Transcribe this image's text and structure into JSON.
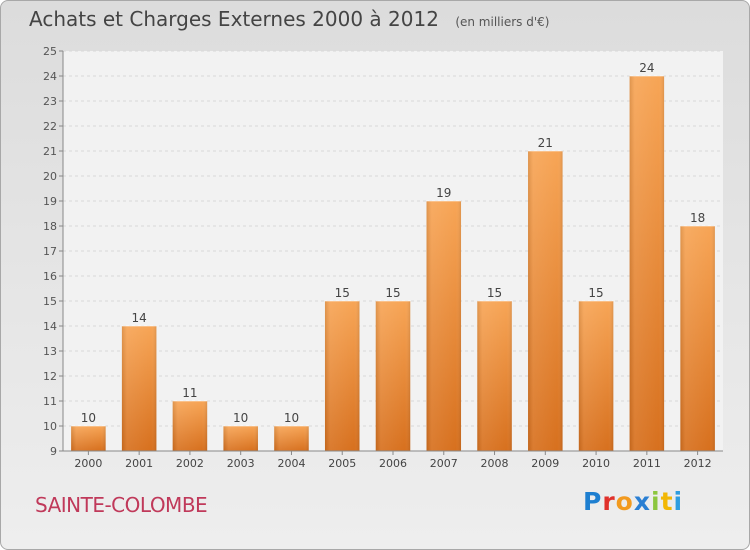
{
  "header": {
    "title": "Achats et Charges Externes 2000 à 2012",
    "unit": "(en milliers d'€)"
  },
  "footer": {
    "commune": "SAINTE-COLOMBE",
    "brand": "Proxiti"
  },
  "colors": {
    "bar_top": "#f7a556",
    "bar_bottom": "#d7701e",
    "commune_text": "#c0395a"
  },
  "chart_data": {
    "type": "bar",
    "title": "Achats et Charges Externes 2000 à 2012",
    "subtitle": "(en milliers d'€)",
    "categories": [
      "2000",
      "2001",
      "2002",
      "2003",
      "2004",
      "2005",
      "2006",
      "2007",
      "2008",
      "2009",
      "2010",
      "2011",
      "2012"
    ],
    "values": [
      10,
      14,
      11,
      10,
      10,
      15,
      15,
      19,
      15,
      21,
      15,
      24,
      18
    ],
    "data_labels": [
      "10",
      "14",
      "11",
      "10",
      "10",
      "15",
      "15",
      "19",
      "15",
      "21",
      "15",
      "24",
      "18"
    ],
    "ylim": [
      9,
      25
    ],
    "yticks": [
      9,
      10,
      11,
      12,
      13,
      14,
      15,
      16,
      17,
      18,
      19,
      20,
      21,
      22,
      23,
      24,
      25
    ],
    "grid": true,
    "xlabel": "",
    "ylabel": ""
  }
}
